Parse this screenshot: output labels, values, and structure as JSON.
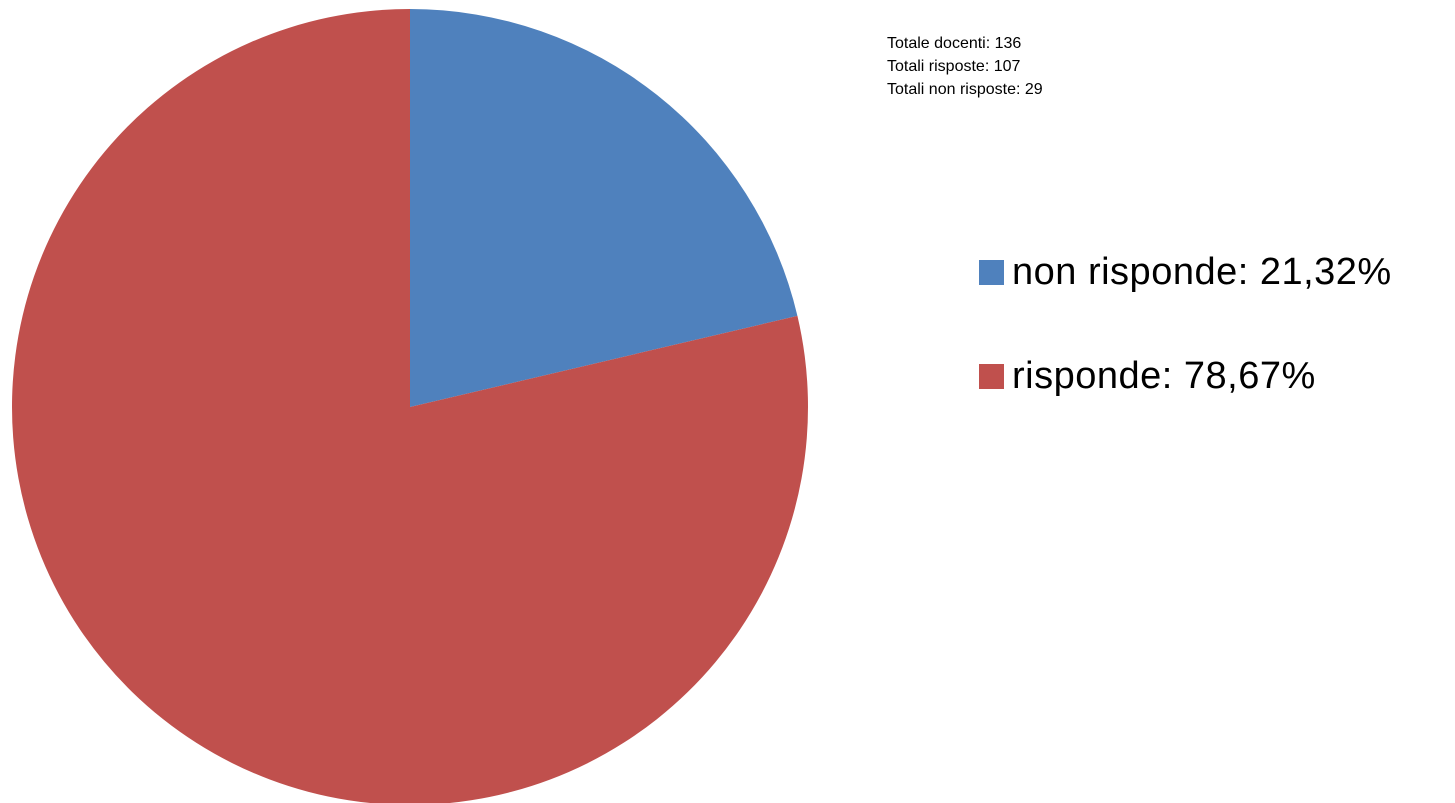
{
  "summary": {
    "line1": "Totale docenti: 136",
    "line2": "Totali risposte: 107",
    "line3": "Totali non risposte: 29"
  },
  "chart_data": {
    "type": "pie",
    "title": "",
    "slices": [
      {
        "label": "non risponde: 21,32%",
        "value": 21.32,
        "color": "#4f81bd"
      },
      {
        "label": "risponde: 78,67%",
        "value": 78.67,
        "color": "#c0504d"
      }
    ],
    "start_angle": "12 o'clock",
    "direction": "clockwise",
    "legend_position": "right"
  }
}
